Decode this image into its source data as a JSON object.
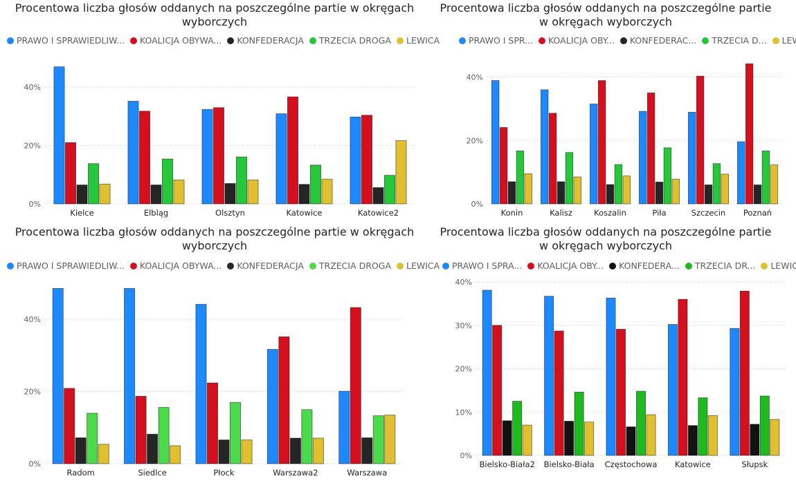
{
  "chart_data": [
    {
      "type": "bar",
      "title": "Procentowa liczba głosów oddanych na poszczególne partie w okręgach wyborczych",
      "legend_labels": [
        "PRAWO I SPRAWIEDLIW...",
        "KOALICJA OBYWA...",
        "KONFEDERACJA",
        "TRZECIA DROGA",
        "LEWICA"
      ],
      "legend": "top-left",
      "grid": true,
      "categories": [
        "Kielce",
        "Elbląg",
        "Olsztyn",
        "Katowice",
        "Katowice2"
      ],
      "yticks": [
        "0%",
        "20%",
        "40%"
      ],
      "ylim": [
        0,
        50
      ],
      "series": [
        {
          "name": "PRAWO I SPRAWIEDLIWOŚĆ",
          "color": "#1e88ff",
          "values": [
            47.0,
            35.2,
            32.4,
            30.9,
            29.8
          ]
        },
        {
          "name": "KOALICJA OBYWATELSKA",
          "color": "#d4101f",
          "values": [
            21.0,
            31.8,
            33.0,
            36.7,
            30.4
          ]
        },
        {
          "name": "KONFEDERACJA",
          "color": "#252525",
          "values": [
            6.5,
            6.5,
            7.0,
            6.7,
            5.6
          ]
        },
        {
          "name": "TRZECIA DROGA",
          "color": "#26c73a",
          "values": [
            13.8,
            15.4,
            16.1,
            13.3,
            9.8
          ]
        },
        {
          "name": "LEWICA",
          "color": "#e0c031",
          "values": [
            6.8,
            8.2,
            8.2,
            8.5,
            21.7
          ]
        }
      ]
    },
    {
      "type": "bar",
      "title": "Procentowa liczba głosów oddanych na poszczególne partie w okręgach wyborczych",
      "legend_labels": [
        "PRAWO I SPR...",
        "KOALICJA OBY...",
        "KONFEDERAC...",
        "TRZECIA D...",
        "LEWICA"
      ],
      "legend": "top-left",
      "grid": true,
      "categories": [
        "Konin",
        "Kalisz",
        "Koszalin",
        "Piła",
        "Szczecin",
        "Poznań"
      ],
      "yticks": [
        "0%",
        "20%",
        "40%"
      ],
      "ylim": [
        0,
        46
      ],
      "series": [
        {
          "name": "PRAWO I SPRAWIEDLIWOŚĆ",
          "color": "#1e88ff",
          "values": [
            38.9,
            36.0,
            31.5,
            29.2,
            28.9,
            19.6
          ]
        },
        {
          "name": "KOALICJA OBYWATELSKA",
          "color": "#d4101f",
          "values": [
            24.1,
            28.6,
            38.9,
            35.0,
            40.3,
            44.2
          ]
        },
        {
          "name": "KONFEDERACJA",
          "color": "#252525",
          "values": [
            7.0,
            7.0,
            6.1,
            6.9,
            6.0,
            6.0
          ]
        },
        {
          "name": "TRZECIA DROGA",
          "color": "#26c73a",
          "values": [
            16.7,
            16.2,
            12.4,
            17.7,
            12.7,
            16.7
          ]
        },
        {
          "name": "LEWICA",
          "color": "#e0c031",
          "values": [
            9.5,
            8.5,
            8.8,
            7.8,
            9.4,
            12.3
          ]
        }
      ]
    },
    {
      "type": "bar",
      "title": "Procentowa liczba głosów oddanych na poszczególne partie w okręgach wyborczych",
      "legend_labels": [
        "PRAWO I SPRAWIEDLIW...",
        "KOALICJA OBYWA...",
        "KONFEDERACJA",
        "TRZECIA DROGA",
        "LEWICA"
      ],
      "legend": "top-left",
      "grid": true,
      "categories": [
        "Radom",
        "Siedlce",
        "Płock",
        "Warszawa2",
        "Warszawa"
      ],
      "yticks": [
        "0%",
        "20%",
        "40%"
      ],
      "ylim": [
        0,
        50
      ],
      "series": [
        {
          "name": "PRAWO I SPRAWIEDLIWOŚĆ",
          "color": "#1e88ff",
          "values": [
            48.6,
            48.6,
            44.2,
            31.7,
            20.1
          ]
        },
        {
          "name": "KOALICJA OBYWATELSKA",
          "color": "#d4101f",
          "values": [
            20.9,
            18.7,
            22.4,
            35.2,
            43.3
          ]
        },
        {
          "name": "KONFEDERACJA",
          "color": "#252525",
          "values": [
            7.2,
            8.2,
            6.6,
            7.1,
            7.2
          ]
        },
        {
          "name": "TRZECIA DROGA",
          "color": "#4cd94c",
          "values": [
            14.0,
            15.6,
            17.0,
            15.0,
            13.3
          ]
        },
        {
          "name": "LEWICA",
          "color": "#e0c031",
          "values": [
            5.4,
            5.0,
            6.6,
            7.1,
            13.5
          ]
        }
      ]
    },
    {
      "type": "bar",
      "title": "Procentowa liczba głosów oddanych na poszczególne partie w okręgach wyborczych",
      "legend_labels": [
        "PRAWO I SPRA...",
        "KOALICJA OBY...",
        "KONFEDERA...",
        "TRZECIA DR...",
        "LEWICA"
      ],
      "legend": "top-left",
      "grid": true,
      "categories": [
        "Bielsko-Biała2",
        "Bielsko-Biała",
        "Częstochowa",
        "Katowice",
        "Słupsk"
      ],
      "yticks": [
        "0%",
        "10%",
        "20%",
        "30%",
        "40%"
      ],
      "ylim": [
        0,
        40
      ],
      "series": [
        {
          "name": "PRAWO I SPRAWIEDLIWOŚĆ",
          "color": "#1e88ff",
          "values": [
            38.1,
            36.7,
            36.3,
            30.2,
            29.3
          ]
        },
        {
          "name": "KOALICJA OBYWATELSKA",
          "color": "#d4101f",
          "values": [
            30.0,
            28.7,
            29.1,
            36.0,
            37.9
          ]
        },
        {
          "name": "KONFEDERACJA",
          "color": "#121212",
          "values": [
            8.0,
            7.9,
            6.6,
            6.9,
            7.2
          ]
        },
        {
          "name": "TRZECIA DROGA",
          "color": "#1fba1f",
          "values": [
            12.5,
            14.6,
            14.8,
            13.3,
            13.7
          ]
        },
        {
          "name": "LEWICA",
          "color": "#e0c031",
          "values": [
            7.0,
            7.7,
            9.4,
            9.2,
            8.3
          ]
        }
      ]
    }
  ]
}
